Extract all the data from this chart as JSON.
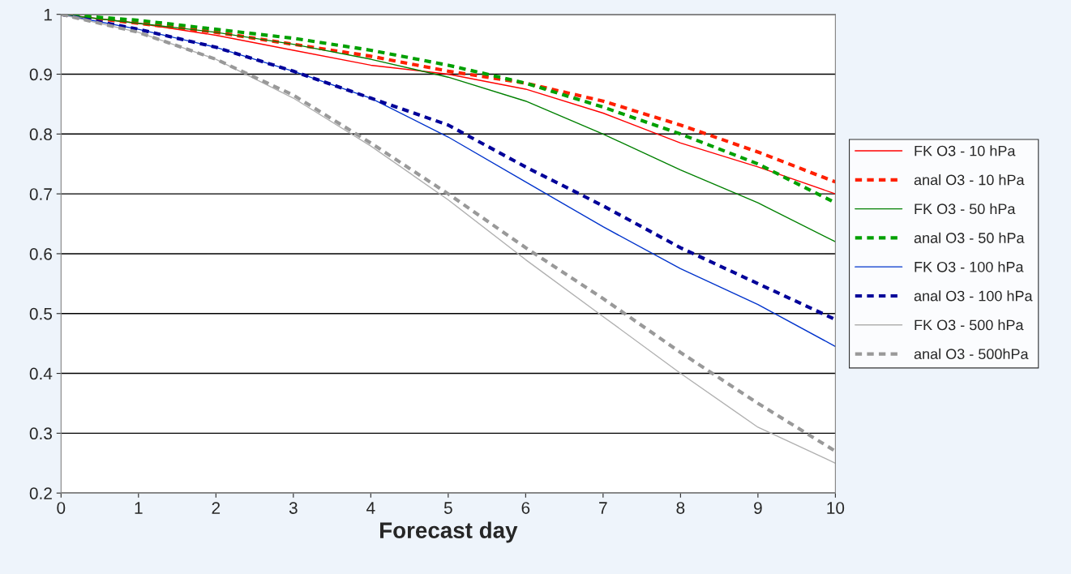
{
  "chart_data": {
    "type": "line",
    "xlabel": "Forecast day",
    "x": [
      0,
      1,
      2,
      3,
      4,
      5,
      6,
      7,
      8,
      9,
      10
    ],
    "xlim": [
      0,
      10
    ],
    "xticks": [
      0,
      1,
      2,
      3,
      4,
      5,
      6,
      7,
      8,
      9,
      10
    ],
    "ylim": [
      0.2,
      1
    ],
    "yticks": [
      0.2,
      0.3,
      0.4,
      0.5,
      0.6,
      0.7,
      0.8,
      0.9,
      1
    ],
    "grid": "y",
    "legend": "right",
    "marker": "none",
    "series": [
      {
        "name": "FK O3 - 10 hPa",
        "color": "#ff0000",
        "line_style": "solid",
        "values": [
          1,
          0.985,
          0.965,
          0.94,
          0.915,
          0.9,
          0.875,
          0.835,
          0.785,
          0.745,
          0.7
        ]
      },
      {
        "name": "anal O3 - 10 hPa",
        "color": "#ff2000",
        "line_style": "dashed",
        "values": [
          1,
          0.985,
          0.97,
          0.95,
          0.93,
          0.905,
          0.885,
          0.855,
          0.815,
          0.77,
          0.72
        ]
      },
      {
        "name": "FK O3 - 50 hPa",
        "color": "#008000",
        "line_style": "solid",
        "values": [
          1,
          0.985,
          0.97,
          0.95,
          0.925,
          0.895,
          0.855,
          0.8,
          0.74,
          0.685,
          0.62
        ]
      },
      {
        "name": "anal O3 - 50 hPa",
        "color": "#00a000",
        "line_style": "dashed",
        "values": [
          1,
          0.99,
          0.975,
          0.96,
          0.94,
          0.915,
          0.885,
          0.845,
          0.8,
          0.75,
          0.685
        ]
      },
      {
        "name": "FK O3 - 100 hPa",
        "color": "#0033cc",
        "line_style": "solid",
        "values": [
          1,
          0.975,
          0.945,
          0.905,
          0.86,
          0.795,
          0.72,
          0.645,
          0.575,
          0.515,
          0.445
        ]
      },
      {
        "name": "anal O3 - 100 hPa",
        "color": "#000099",
        "line_style": "dashed",
        "values": [
          1,
          0.975,
          0.945,
          0.905,
          0.86,
          0.815,
          0.745,
          0.68,
          0.61,
          0.55,
          0.49
        ]
      },
      {
        "name": "FK O3 - 500 hPa",
        "color": "#b0b0b0",
        "line_style": "solid",
        "values": [
          1,
          0.97,
          0.925,
          0.86,
          0.78,
          0.69,
          0.59,
          0.495,
          0.4,
          0.31,
          0.25
        ]
      },
      {
        "name": "anal O3 - 500hPa",
        "color": "#999999",
        "line_style": "dashed",
        "values": [
          1,
          0.97,
          0.925,
          0.865,
          0.785,
          0.7,
          0.61,
          0.525,
          0.435,
          0.35,
          0.27
        ]
      }
    ]
  }
}
